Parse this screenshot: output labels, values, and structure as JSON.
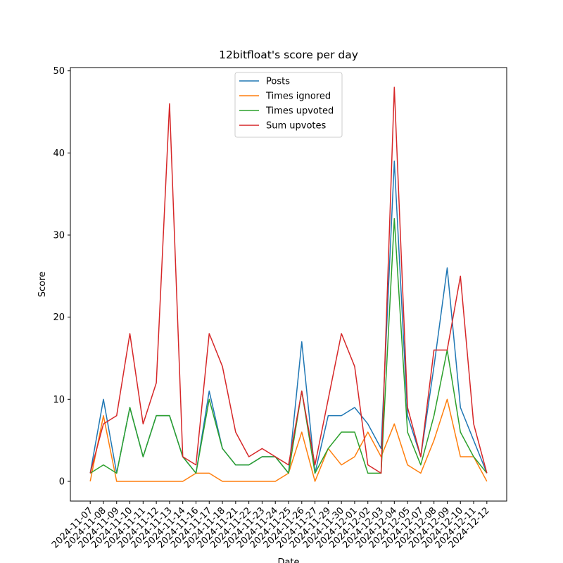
{
  "chart_data": {
    "type": "line",
    "title": "12bitfloat's score per day",
    "x_label": "Date",
    "y_label": "Score",
    "categories": [
      "2024-11-07",
      "2024-11-08",
      "2024-11-09",
      "2024-11-10",
      "2024-11-11",
      "2024-11-12",
      "2024-11-13",
      "2024-11-14",
      "2024-11-16",
      "2024-11-17",
      "2024-11-18",
      "2024-11-21",
      "2024-11-22",
      "2024-11-23",
      "2024-11-24",
      "2024-11-25",
      "2024-11-26",
      "2024-11-27",
      "2024-11-29",
      "2024-11-30",
      "2024-12-01",
      "2024-12-02",
      "2024-12-03",
      "2024-12-04",
      "2024-12-05",
      "2024-12-07",
      "2024-12-08",
      "2024-12-09",
      "2024-12-10",
      "2024-12-11",
      "2024-12-12"
    ],
    "series": [
      {
        "name": "Posts",
        "color": "#1f77b4",
        "values": [
          1,
          10,
          1,
          9,
          3,
          8,
          8,
          3,
          1,
          11,
          4,
          2,
          2,
          3,
          3,
          1,
          17,
          1,
          8,
          8,
          9,
          7,
          4,
          39,
          8,
          3,
          14,
          26,
          9,
          5,
          1
        ]
      },
      {
        "name": "Times ignored",
        "color": "#ff7f0e",
        "values": [
          0,
          8,
          0,
          0,
          0,
          0,
          0,
          0,
          1,
          1,
          0,
          0,
          0,
          0,
          0,
          1,
          6,
          0,
          4,
          2,
          3,
          6,
          3,
          7,
          2,
          1,
          5,
          10,
          3,
          3,
          0
        ]
      },
      {
        "name": "Times upvoted",
        "color": "#2ca02c",
        "values": [
          1,
          2,
          1,
          9,
          3,
          8,
          8,
          3,
          1,
          10,
          4,
          2,
          2,
          3,
          3,
          1,
          11,
          1,
          4,
          6,
          6,
          1,
          1,
          32,
          6,
          2,
          8,
          16,
          6,
          3,
          1
        ]
      },
      {
        "name": "Sum upvotes",
        "color": "#d62728",
        "values": [
          1,
          7,
          8,
          18,
          7,
          12,
          46,
          3,
          2,
          18,
          14,
          6,
          3,
          4,
          3,
          2,
          11,
          2,
          10,
          18,
          14,
          2,
          1,
          48,
          9,
          3,
          16,
          16,
          25,
          7,
          1
        ]
      }
    ],
    "ylim": [
      -2.4,
      50.4
    ],
    "yticks": [
      0,
      10,
      20,
      30,
      40,
      50
    ],
    "legend": "upper center"
  }
}
